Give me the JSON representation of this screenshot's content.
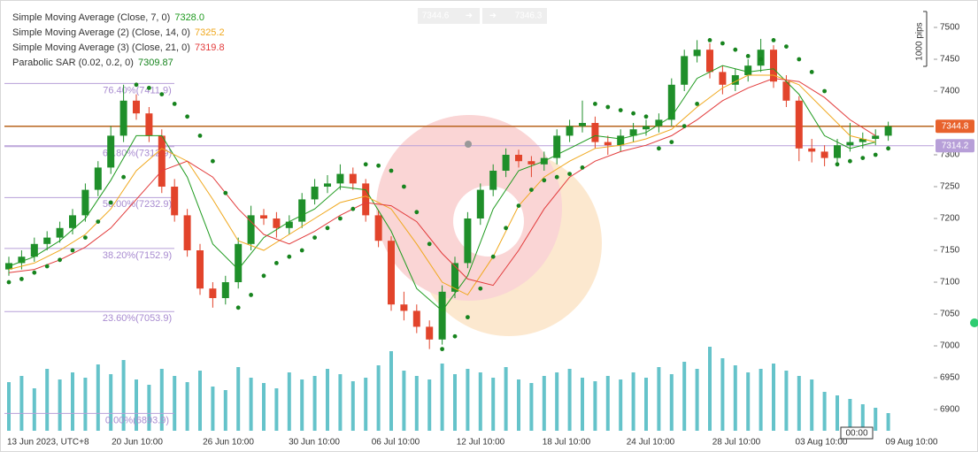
{
  "chart_data": {
    "type": "candlestick",
    "ylim": [
      6866.7,
      7536.1
    ],
    "yticks": [
      6900,
      6950,
      7000,
      7050,
      7100,
      7150,
      7200,
      7250,
      7300,
      7400,
      7450,
      7500
    ],
    "xticks": [
      "13 Jun 2023, UTC+8",
      "20 Jun 10:00",
      "26 Jun 10:00",
      "30 Jun 10:00",
      "06 Jul 10:00",
      "12 Jul 10:00",
      "18 Jul 10:00",
      "24 Jul 10:00",
      "28 Jul 10:00",
      "03 Aug 10:00",
      "09 Aug 10:00"
    ],
    "up_color": "#1f8f2a",
    "down_color": "#e2442b",
    "ohlc": [
      [
        7120,
        7140,
        7110,
        7130
      ],
      [
        7130,
        7150,
        7120,
        7140
      ],
      [
        7140,
        7170,
        7132,
        7160
      ],
      [
        7160,
        7180,
        7150,
        7170
      ],
      [
        7170,
        7195,
        7162,
        7185
      ],
      [
        7185,
        7215,
        7175,
        7205
      ],
      [
        7205,
        7255,
        7195,
        7245
      ],
      [
        7245,
        7290,
        7235,
        7280
      ],
      [
        7280,
        7345,
        7270,
        7330
      ],
      [
        7330,
        7410,
        7320,
        7385
      ],
      [
        7385,
        7395,
        7355,
        7365
      ],
      [
        7365,
        7375,
        7320,
        7330
      ],
      [
        7330,
        7340,
        7240,
        7250
      ],
      [
        7250,
        7262,
        7195,
        7205
      ],
      [
        7205,
        7215,
        7140,
        7150
      ],
      [
        7150,
        7160,
        7080,
        7090
      ],
      [
        7090,
        7100,
        7060,
        7075
      ],
      [
        7075,
        7110,
        7065,
        7100
      ],
      [
        7100,
        7170,
        7090,
        7160
      ],
      [
        7160,
        7220,
        7150,
        7205
      ],
      [
        7205,
        7215,
        7190,
        7200
      ],
      [
        7200,
        7210,
        7170,
        7185
      ],
      [
        7185,
        7205,
        7175,
        7195
      ],
      [
        7195,
        7240,
        7185,
        7230
      ],
      [
        7230,
        7262,
        7222,
        7250
      ],
      [
        7250,
        7268,
        7240,
        7255
      ],
      [
        7255,
        7285,
        7245,
        7270
      ],
      [
        7270,
        7280,
        7245,
        7255
      ],
      [
        7255,
        7262,
        7195,
        7205
      ],
      [
        7205,
        7212,
        7155,
        7165
      ],
      [
        7165,
        7172,
        7055,
        7065
      ],
      [
        7065,
        7085,
        7040,
        7055
      ],
      [
        7055,
        7065,
        7020,
        7030
      ],
      [
        7030,
        7040,
        6995,
        7010
      ],
      [
        7010,
        7095,
        7002,
        7085
      ],
      [
        7085,
        7140,
        7075,
        7130
      ],
      [
        7130,
        7210,
        7122,
        7200
      ],
      [
        7200,
        7255,
        7190,
        7245
      ],
      [
        7245,
        7285,
        7235,
        7275
      ],
      [
        7275,
        7310,
        7265,
        7300
      ],
      [
        7300,
        7308,
        7280,
        7290
      ],
      [
        7290,
        7298,
        7265,
        7285
      ],
      [
        7285,
        7305,
        7275,
        7295
      ],
      [
        7295,
        7340,
        7285,
        7330
      ],
      [
        7330,
        7355,
        7320,
        7345
      ],
      [
        7345,
        7385,
        7335,
        7350
      ],
      [
        7350,
        7360,
        7310,
        7320
      ],
      [
        7320,
        7330,
        7300,
        7315
      ],
      [
        7315,
        7340,
        7305,
        7330
      ],
      [
        7330,
        7350,
        7320,
        7340
      ],
      [
        7340,
        7355,
        7330,
        7345
      ],
      [
        7345,
        7365,
        7335,
        7355
      ],
      [
        7355,
        7420,
        7345,
        7410
      ],
      [
        7410,
        7465,
        7400,
        7455
      ],
      [
        7455,
        7480,
        7445,
        7465
      ],
      [
        7465,
        7475,
        7420,
        7430
      ],
      [
        7430,
        7440,
        7395,
        7410
      ],
      [
        7410,
        7435,
        7400,
        7425
      ],
      [
        7425,
        7450,
        7415,
        7440
      ],
      [
        7440,
        7482,
        7430,
        7465
      ],
      [
        7465,
        7472,
        7405,
        7415
      ],
      [
        7415,
        7425,
        7375,
        7385
      ],
      [
        7385,
        7392,
        7290,
        7310
      ],
      [
        7310,
        7325,
        7288,
        7305
      ],
      [
        7305,
        7315,
        7282,
        7295
      ],
      [
        7295,
        7325,
        7285,
        7315
      ],
      [
        7315,
        7350,
        7305,
        7320
      ],
      [
        7320,
        7335,
        7310,
        7325
      ],
      [
        7325,
        7340,
        7315,
        7330
      ],
      [
        7330,
        7352,
        7322,
        7344.8
      ]
    ],
    "volume": {
      "color": "#3fb4bd",
      "values": [
        55,
        62,
        48,
        70,
        58,
        66,
        60,
        75,
        64,
        80,
        58,
        52,
        70,
        62,
        55,
        68,
        50,
        46,
        72,
        60,
        54,
        48,
        66,
        58,
        62,
        70,
        64,
        56,
        60,
        74,
        90,
        68,
        62,
        58,
        76,
        64,
        70,
        66,
        60,
        72,
        58,
        54,
        62,
        66,
        70,
        60,
        56,
        62,
        58,
        66,
        60,
        72,
        64,
        78,
        70,
        95,
        82,
        74,
        66,
        70,
        76,
        68,
        62,
        58,
        44,
        40,
        36,
        30,
        26,
        20
      ]
    },
    "ma_x": [
      0,
      2,
      4,
      6,
      8,
      10,
      12,
      14,
      16,
      18,
      20,
      22,
      24,
      26,
      28,
      30,
      32,
      34,
      36,
      38,
      40,
      42,
      44,
      46,
      48,
      50,
      52,
      54,
      56,
      58,
      60,
      62,
      64,
      66,
      68
    ],
    "indicators": [
      {
        "name": "Simple Moving Average (Close, 7, 0)",
        "value": "7328.0",
        "color": "#1e9a1e",
        "values": [
          7125,
          7140,
          7165,
          7200,
          7260,
          7330,
          7330,
          7265,
          7160,
          7120,
          7170,
          7195,
          7215,
          7250,
          7245,
          7180,
          7090,
          7055,
          7110,
          7215,
          7275,
          7290,
          7310,
          7330,
          7325,
          7335,
          7360,
          7420,
          7440,
          7430,
          7435,
          7395,
          7330,
          7310,
          7320
        ]
      },
      {
        "name": "Simple Moving Average (2) (Close, 14, 0)",
        "value": "7325.2",
        "color": "#f0a81e",
        "values": [
          7120,
          7130,
          7150,
          7175,
          7215,
          7275,
          7310,
          7290,
          7230,
          7165,
          7150,
          7175,
          7200,
          7225,
          7235,
          7215,
          7160,
          7100,
          7080,
          7140,
          7220,
          7265,
          7290,
          7310,
          7315,
          7325,
          7340,
          7375,
          7405,
          7425,
          7425,
          7410,
          7370,
          7330,
          7320
        ]
      },
      {
        "name": "Simple Moving Average (3) (Close, 21, 0)",
        "value": "7319.8",
        "color": "#e23b3b",
        "values": [
          7115,
          7120,
          7135,
          7155,
          7185,
          7230,
          7275,
          7290,
          7265,
          7215,
          7175,
          7160,
          7180,
          7205,
          7225,
          7220,
          7195,
          7145,
          7105,
          7095,
          7150,
          7215,
          7265,
          7290,
          7305,
          7315,
          7330,
          7355,
          7385,
          7405,
          7420,
          7415,
          7390,
          7355,
          7330
        ]
      },
      {
        "name": "Parabolic SAR (0.02, 0.2, 0)",
        "value": "7309.87",
        "color": "#17841e",
        "values": [
          7100,
          7105,
          7115,
          7125,
          7135,
          7150,
          7170,
          7195,
          7225,
          7265,
          7410,
          7405,
          7395,
          7380,
          7360,
          7330,
          7290,
          7240,
          7060,
          7080,
          7110,
          7130,
          7140,
          7150,
          7170,
          7185,
          7200,
          7215,
          7285,
          7283,
          7275,
          7250,
          7210,
          7160,
          6995,
          7015,
          7045,
          7090,
          7140,
          7185,
          7220,
          7245,
          7260,
          7265,
          7270,
          7280,
          7380,
          7375,
          7370,
          7365,
          7360,
          7310,
          7320,
          7345,
          7380,
          7480,
          7475,
          7465,
          7455,
          7450,
          7480,
          7470,
          7450,
          7430,
          7400,
          7285,
          7290,
          7295,
          7300,
          7310
        ]
      }
    ],
    "fib_levels": [
      {
        "label": "76.40%(7411.9)",
        "value": 7411.9
      },
      {
        "label": "61.80%(7312.9)",
        "value": 7312.9
      },
      {
        "label": "50.00%(7232.9)",
        "value": 7232.9
      },
      {
        "label": "38.20%(7152.9)",
        "value": 7152.9
      },
      {
        "label": "23.60%(7053.9)",
        "value": 7053.9
      },
      {
        "label": "0.00%(6893.9)",
        "value": 6893.9
      }
    ],
    "price_lines": [
      {
        "value": 7344.8,
        "color": "#e8622c",
        "line": "#b8641e"
      },
      {
        "value": 7314.2,
        "color": "#b79fd8",
        "line": "#b79fd8"
      }
    ],
    "quote": {
      "bid": "7344.6",
      "ask": "7346.3"
    },
    "scale_note": "1000 pips",
    "crosshair_time": "00:00"
  }
}
